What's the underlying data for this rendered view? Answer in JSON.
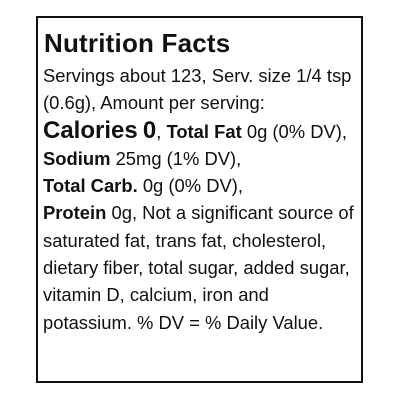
{
  "label": {
    "title": "Nutrition Facts",
    "servings": "Servings about 123, Serv. size 1/4 tsp (0.6g), Amount per serving:",
    "calories": {
      "label": "Calories",
      "value": "0",
      "suffix": ","
    },
    "nutrients": [
      {
        "name": "Total Fat",
        "detail": "0g (0% DV),"
      },
      {
        "name": "Sodium",
        "detail": "25mg (1% DV),"
      },
      {
        "name": "Total Carb.",
        "detail": "0g (0% DV),"
      },
      {
        "name": "Protein",
        "detail": "0g, Not a significant source of saturated fat, trans fat, cholesterol, dietary fiber, total sugar, added sugar, vitamin D, calcium, iron and potassium. % DV = % Daily Value."
      }
    ]
  }
}
